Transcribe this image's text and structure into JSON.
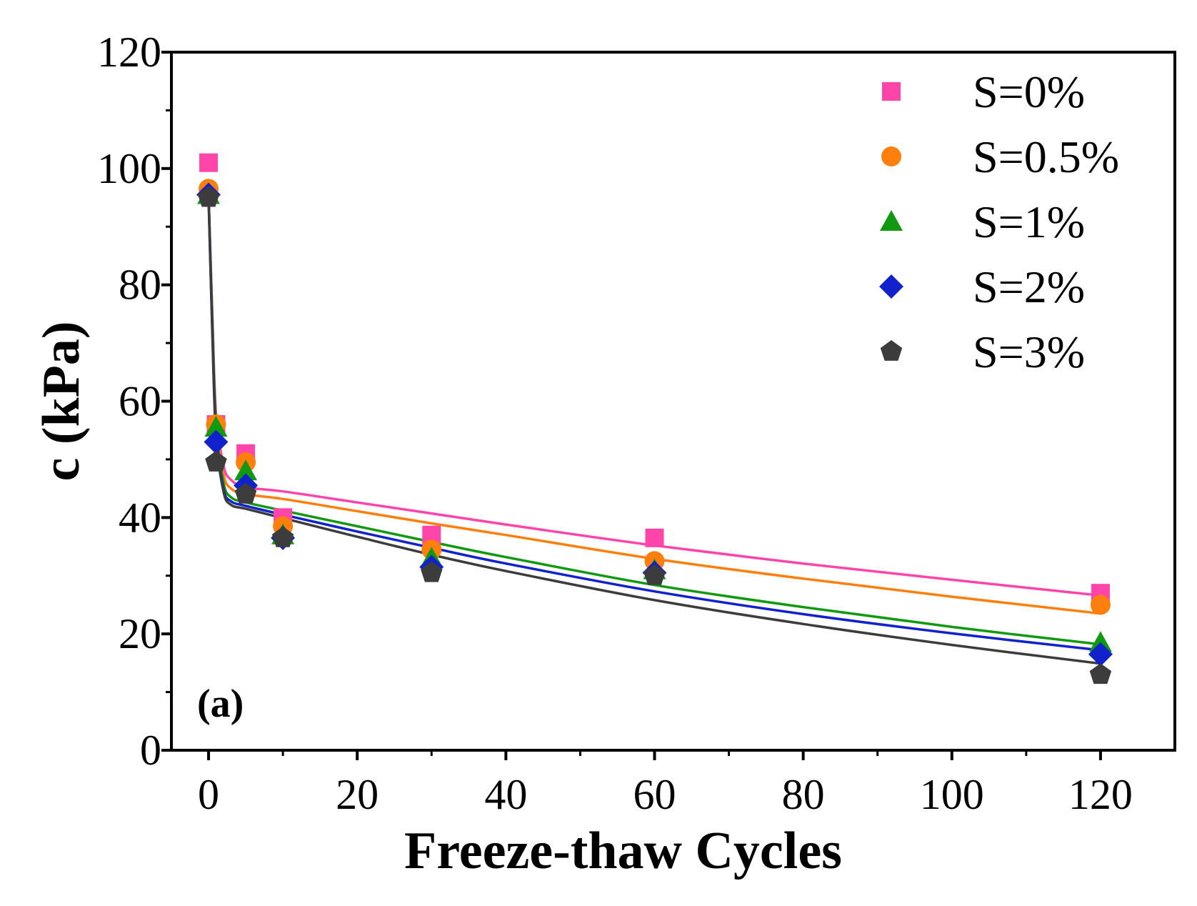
{
  "chart_data": {
    "type": "scatter",
    "title": "",
    "panel_label": "(a)",
    "xlabel": "Freeze-thaw Cycles",
    "ylabel": "c (kPa)",
    "xlim": [
      -5,
      130
    ],
    "ylim": [
      0,
      120
    ],
    "xticks": [
      0,
      20,
      40,
      60,
      80,
      100,
      120
    ],
    "yticks": [
      0,
      20,
      40,
      60,
      80,
      100,
      120
    ],
    "legend_position": "top-right",
    "grid": false,
    "x": [
      0,
      1,
      5,
      10,
      30,
      60,
      120
    ],
    "series": [
      {
        "name": "S=0%",
        "color": "#ff44aa",
        "marker": "square",
        "values": [
          101,
          56,
          51,
          40,
          37,
          36.5,
          27
        ],
        "fit": [
          [
            0,
            95.5
          ],
          [
            0.5,
            75
          ],
          [
            1,
            58
          ],
          [
            2,
            49
          ],
          [
            3,
            46.5
          ],
          [
            5,
            45.2
          ],
          [
            10,
            44.5
          ],
          [
            20,
            42.6
          ],
          [
            30,
            40.7
          ],
          [
            40,
            38.8
          ],
          [
            60,
            35.2
          ],
          [
            80,
            32.1
          ],
          [
            100,
            29.3
          ],
          [
            120,
            26.6
          ]
        ]
      },
      {
        "name": "S=0.5%",
        "color": "#ff7f0e",
        "marker": "circle",
        "values": [
          96.5,
          56,
          49.5,
          38.5,
          34.5,
          32.5,
          25
        ],
        "fit": [
          [
            0,
            95.5
          ],
          [
            0.5,
            75
          ],
          [
            1,
            57
          ],
          [
            2,
            47.5
          ],
          [
            3,
            45
          ],
          [
            5,
            44
          ],
          [
            10,
            43.2
          ],
          [
            20,
            41.1
          ],
          [
            30,
            39
          ],
          [
            40,
            37
          ],
          [
            60,
            32.9
          ],
          [
            80,
            29.5
          ],
          [
            100,
            26.4
          ],
          [
            120,
            23.5
          ]
        ]
      },
      {
        "name": "S=1%",
        "color": "#119911",
        "marker": "triangle",
        "values": [
          95.5,
          55.5,
          48,
          37,
          33,
          31,
          18.5
        ],
        "fit": [
          [
            0,
            95.5
          ],
          [
            0.5,
            74
          ],
          [
            1,
            56
          ],
          [
            2,
            46
          ],
          [
            3,
            43.5
          ],
          [
            5,
            42.6
          ],
          [
            10,
            41.2
          ],
          [
            20,
            38.5
          ],
          [
            30,
            35.8
          ],
          [
            40,
            33.2
          ],
          [
            60,
            28.4
          ],
          [
            80,
            24.6
          ],
          [
            100,
            21.2
          ],
          [
            120,
            18.2
          ]
        ]
      },
      {
        "name": "S=2%",
        "color": "#1122cc",
        "marker": "diamond",
        "values": [
          95.5,
          53,
          45.5,
          36.5,
          31.5,
          30.5,
          16.5
        ],
        "fit": [
          [
            0,
            95.5
          ],
          [
            0.5,
            73
          ],
          [
            1,
            55
          ],
          [
            2,
            45
          ],
          [
            3,
            42.8
          ],
          [
            5,
            42
          ],
          [
            10,
            40.5
          ],
          [
            20,
            37.6
          ],
          [
            30,
            34.8
          ],
          [
            40,
            32.1
          ],
          [
            60,
            27.3
          ],
          [
            80,
            23.4
          ],
          [
            100,
            20.1
          ],
          [
            120,
            17.2
          ]
        ]
      },
      {
        "name": "S=3%",
        "color": "#3c3c3c",
        "marker": "pentagon",
        "values": [
          95,
          49.5,
          44,
          36.5,
          30.5,
          30,
          13
        ],
        "fit": [
          [
            0,
            95
          ],
          [
            0.5,
            72
          ],
          [
            1,
            54
          ],
          [
            2,
            44.5
          ],
          [
            3,
            42.2
          ],
          [
            5,
            41.5
          ],
          [
            10,
            39.9
          ],
          [
            20,
            36.7
          ],
          [
            30,
            33.6
          ],
          [
            40,
            30.8
          ],
          [
            60,
            25.8
          ],
          [
            80,
            21.7
          ],
          [
            100,
            18.1
          ],
          [
            120,
            14.9
          ]
        ]
      }
    ]
  }
}
